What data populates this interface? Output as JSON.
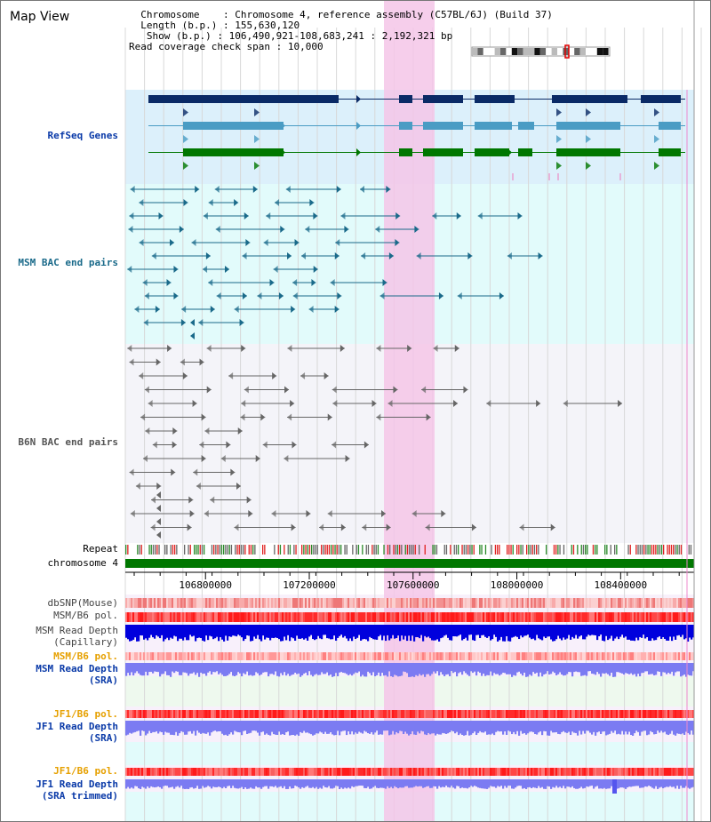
{
  "title": "Map View",
  "header": {
    "chromosome_key": "Chromosome",
    "chromosome_val": "Chromosome 4, reference assembly (C57BL/6J) (Build 37)",
    "length_key": "Length (b.p.)",
    "length_val": "155,630,120",
    "show_key": "Show (b.p.)",
    "show_val": "106,490,921-108,683,241 : 2,192,321 bp",
    "coverage_key": "Read coverage check span",
    "coverage_val": "10,000"
  },
  "tracks": {
    "refseq": "RefSeq Genes",
    "msm_bac": "MSM BAC end pairs",
    "b6n_bac": "B6N BAC end pairs",
    "repeat": "Repeat",
    "chromosome": "chromosome 4",
    "dbsnp": "dbSNP(Mouse)",
    "msm_b6_pol_1": "MSM/B6 pol.",
    "msm_depth_cap_1": "MSM Read Depth",
    "msm_depth_cap_2": "(Capillary)",
    "msm_b6_pol_2": "MSM/B6 pol.",
    "msm_depth_sra_1": "MSM Read Depth",
    "msm_depth_sra_2": "(SRA)",
    "jf1_b6_pol_1": "JF1/B6 pol.",
    "jf1_depth_sra_1": "JF1 Read Depth",
    "jf1_depth_sra_2": "(SRA)",
    "jf1_b6_pol_2": "JF1/B6 pol.",
    "jf1_depth_trim_1": "JF1 Read Depth",
    "jf1_depth_trim_2": "(SRA trimmed)"
  },
  "axis": {
    "ticks": [
      106800000,
      107200000,
      107600000,
      108000000,
      108400000
    ],
    "tick_labels": [
      "106800000",
      "107200000",
      "107600000",
      "108000000",
      "108400000"
    ],
    "range": [
      106490921,
      108683241
    ]
  },
  "colors": {
    "highlight": "#f5c6e8",
    "refseq_bg": "#dcf0fb",
    "bac_bg": "#e2fbfb",
    "b6n_bg": "#f4f4f9",
    "gene_navy": "#0a2a66",
    "gene_teal": "#4a9cc4",
    "gene_green": "#007700",
    "msm_line": "#1a6a8a",
    "b6n_line": "#666666",
    "depth_blue": "#0000dd",
    "depth_lavender": "#7b7bf2",
    "pol_red": "#ff3c3c",
    "label_blue": "#0a3aa8",
    "label_orange": "#e6a000"
  }
}
